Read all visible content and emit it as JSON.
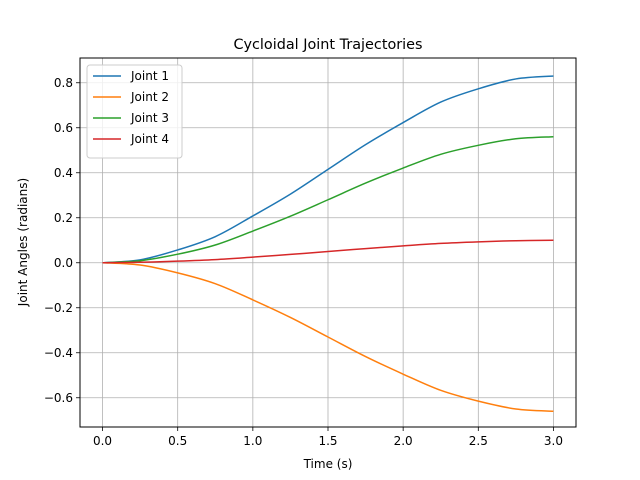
{
  "chart_data": {
    "type": "line",
    "title": "Cycloidal Joint Trajectories",
    "xlabel": "Time (s)",
    "ylabel": "Joint Angles (radians)",
    "xlim": [
      -0.15,
      3.15
    ],
    "ylim": [
      -0.73,
      0.91
    ],
    "x_ticks": [
      0.0,
      0.5,
      1.0,
      1.5,
      2.0,
      2.5,
      3.0
    ],
    "x_tick_labels": [
      "0.0",
      "0.5",
      "1.0",
      "1.5",
      "2.0",
      "2.5",
      "3.0"
    ],
    "y_ticks": [
      -0.6,
      -0.4,
      -0.2,
      0.0,
      0.2,
      0.4,
      0.6,
      0.8
    ],
    "y_tick_labels": [
      "−0.6",
      "−0.4",
      "−0.2",
      "0.0",
      "0.2",
      "0.4",
      "0.6",
      "0.8"
    ],
    "grid": true,
    "legend_position": "upper-left",
    "x": [
      0.0,
      0.25,
      0.5,
      0.75,
      1.0,
      1.25,
      1.5,
      1.75,
      2.0,
      2.25,
      2.5,
      2.75,
      3.0
    ],
    "series": [
      {
        "name": "Joint 1",
        "color": "#1f77b4",
        "values": [
          0.0,
          0.013,
          0.057,
          0.116,
          0.208,
          0.305,
          0.415,
          0.525,
          0.623,
          0.714,
          0.773,
          0.817,
          0.83
        ]
      },
      {
        "name": "Joint 2",
        "color": "#ff7f0e",
        "values": [
          0.0,
          -0.01,
          -0.045,
          -0.093,
          -0.165,
          -0.243,
          -0.33,
          -0.417,
          -0.495,
          -0.567,
          -0.615,
          -0.65,
          -0.66
        ]
      },
      {
        "name": "Joint 3",
        "color": "#2ca02c",
        "values": [
          0.0,
          0.009,
          0.038,
          0.079,
          0.141,
          0.207,
          0.28,
          0.354,
          0.421,
          0.482,
          0.522,
          0.551,
          0.56
        ]
      },
      {
        "name": "Joint 4",
        "color": "#d62728",
        "values": [
          0.0,
          0.002,
          0.007,
          0.014,
          0.025,
          0.037,
          0.05,
          0.063,
          0.075,
          0.086,
          0.093,
          0.098,
          0.1
        ]
      }
    ]
  }
}
